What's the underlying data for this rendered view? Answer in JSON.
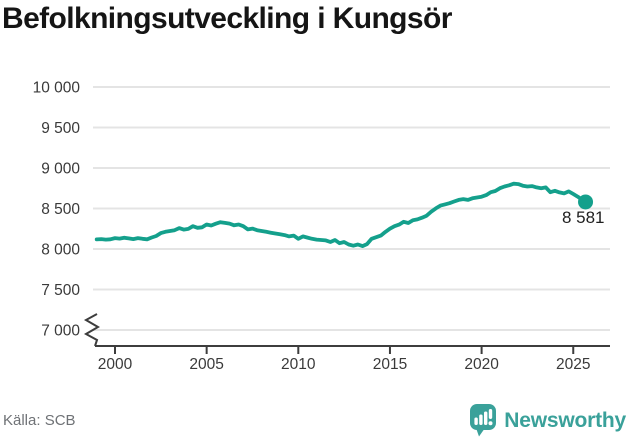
{
  "title": "Befolkningsutveckling i Kungsör",
  "source": "Källa: SCB",
  "branding": {
    "name": "Newsworthy",
    "icon": "bar-chart-speech-bubble-icon"
  },
  "colors": {
    "line": "#14a08c",
    "dot": "#14a08c",
    "grid": "#e4e4e4",
    "axis": "#3d3d3d",
    "tick_text": "#3a3a3a",
    "title_text": "#151515",
    "source_text": "#6f7276",
    "brand": "#3aa19a"
  },
  "chart_data": {
    "type": "line",
    "title": "Befolkningsutveckling i Kungsör",
    "xlabel": "",
    "ylabel": "",
    "grid": "horizontal",
    "legend": false,
    "axis_break_at_bottom": true,
    "xlim": [
      1999,
      2026.2
    ],
    "ylim": [
      7000,
      10000
    ],
    "x_ticks": [
      2000,
      2005,
      2010,
      2015,
      2020,
      2025
    ],
    "x_tick_labels": [
      "2000",
      "2005",
      "2010",
      "2015",
      "2020",
      "2025"
    ],
    "y_ticks": [
      7000,
      7500,
      8000,
      8500,
      9000,
      9500,
      10000
    ],
    "y_tick_labels": [
      "7 000",
      "7 500",
      "8 000",
      "8 500",
      "9 000",
      "9 500",
      "10 000"
    ],
    "end_label": "8 581",
    "end_value": 8581,
    "series": [
      {
        "name": "Befolkning",
        "points": [
          [
            1999.0,
            8118
          ],
          [
            1999.25,
            8122
          ],
          [
            1999.5,
            8116
          ],
          [
            1999.75,
            8120
          ],
          [
            2000.0,
            8135
          ],
          [
            2000.25,
            8128
          ],
          [
            2000.5,
            8139
          ],
          [
            2000.75,
            8131
          ],
          [
            2001.0,
            8122
          ],
          [
            2001.25,
            8134
          ],
          [
            2001.5,
            8126
          ],
          [
            2001.75,
            8120
          ],
          [
            2002.0,
            8142
          ],
          [
            2002.25,
            8160
          ],
          [
            2002.5,
            8196
          ],
          [
            2002.75,
            8212
          ],
          [
            2003.0,
            8222
          ],
          [
            2003.25,
            8232
          ],
          [
            2003.5,
            8258
          ],
          [
            2003.75,
            8240
          ],
          [
            2004.0,
            8248
          ],
          [
            2004.25,
            8282
          ],
          [
            2004.5,
            8262
          ],
          [
            2004.75,
            8268
          ],
          [
            2005.0,
            8302
          ],
          [
            2005.25,
            8290
          ],
          [
            2005.5,
            8312
          ],
          [
            2005.75,
            8331
          ],
          [
            2006.0,
            8322
          ],
          [
            2006.25,
            8313
          ],
          [
            2006.5,
            8292
          ],
          [
            2006.75,
            8302
          ],
          [
            2007.0,
            8282
          ],
          [
            2007.25,
            8242
          ],
          [
            2007.5,
            8252
          ],
          [
            2007.75,
            8232
          ],
          [
            2008.0,
            8222
          ],
          [
            2008.25,
            8212
          ],
          [
            2008.5,
            8201
          ],
          [
            2008.75,
            8191
          ],
          [
            2009.0,
            8181
          ],
          [
            2009.25,
            8171
          ],
          [
            2009.5,
            8156
          ],
          [
            2009.75,
            8166
          ],
          [
            2010.0,
            8126
          ],
          [
            2010.25,
            8156
          ],
          [
            2010.5,
            8141
          ],
          [
            2010.75,
            8126
          ],
          [
            2011.0,
            8116
          ],
          [
            2011.25,
            8111
          ],
          [
            2011.5,
            8106
          ],
          [
            2011.75,
            8086
          ],
          [
            2012.0,
            8111
          ],
          [
            2012.25,
            8071
          ],
          [
            2012.5,
            8086
          ],
          [
            2012.75,
            8056
          ],
          [
            2013.0,
            8041
          ],
          [
            2013.25,
            8056
          ],
          [
            2013.5,
            8036
          ],
          [
            2013.75,
            8061
          ],
          [
            2014.0,
            8126
          ],
          [
            2014.25,
            8146
          ],
          [
            2014.5,
            8166
          ],
          [
            2014.75,
            8211
          ],
          [
            2015.0,
            8251
          ],
          [
            2015.25,
            8281
          ],
          [
            2015.5,
            8301
          ],
          [
            2015.75,
            8336
          ],
          [
            2016.0,
            8321
          ],
          [
            2016.25,
            8356
          ],
          [
            2016.5,
            8366
          ],
          [
            2016.75,
            8386
          ],
          [
            2017.0,
            8411
          ],
          [
            2017.25,
            8461
          ],
          [
            2017.5,
            8501
          ],
          [
            2017.75,
            8536
          ],
          [
            2018.0,
            8551
          ],
          [
            2018.25,
            8566
          ],
          [
            2018.5,
            8586
          ],
          [
            2018.75,
            8606
          ],
          [
            2019.0,
            8616
          ],
          [
            2019.25,
            8606
          ],
          [
            2019.5,
            8626
          ],
          [
            2019.75,
            8636
          ],
          [
            2020.0,
            8646
          ],
          [
            2020.25,
            8666
          ],
          [
            2020.5,
            8701
          ],
          [
            2020.75,
            8716
          ],
          [
            2021.0,
            8751
          ],
          [
            2021.25,
            8771
          ],
          [
            2021.5,
            8786
          ],
          [
            2021.75,
            8806
          ],
          [
            2022.0,
            8801
          ],
          [
            2022.25,
            8781
          ],
          [
            2022.5,
            8771
          ],
          [
            2022.75,
            8776
          ],
          [
            2023.0,
            8761
          ],
          [
            2023.25,
            8751
          ],
          [
            2023.5,
            8761
          ],
          [
            2023.75,
            8701
          ],
          [
            2024.0,
            8719
          ],
          [
            2024.25,
            8699
          ],
          [
            2024.5,
            8687
          ],
          [
            2024.75,
            8711
          ],
          [
            2025.0,
            8679
          ],
          [
            2025.25,
            8646
          ],
          [
            2025.5,
            8606
          ],
          [
            2025.67,
            8581
          ]
        ]
      }
    ]
  }
}
